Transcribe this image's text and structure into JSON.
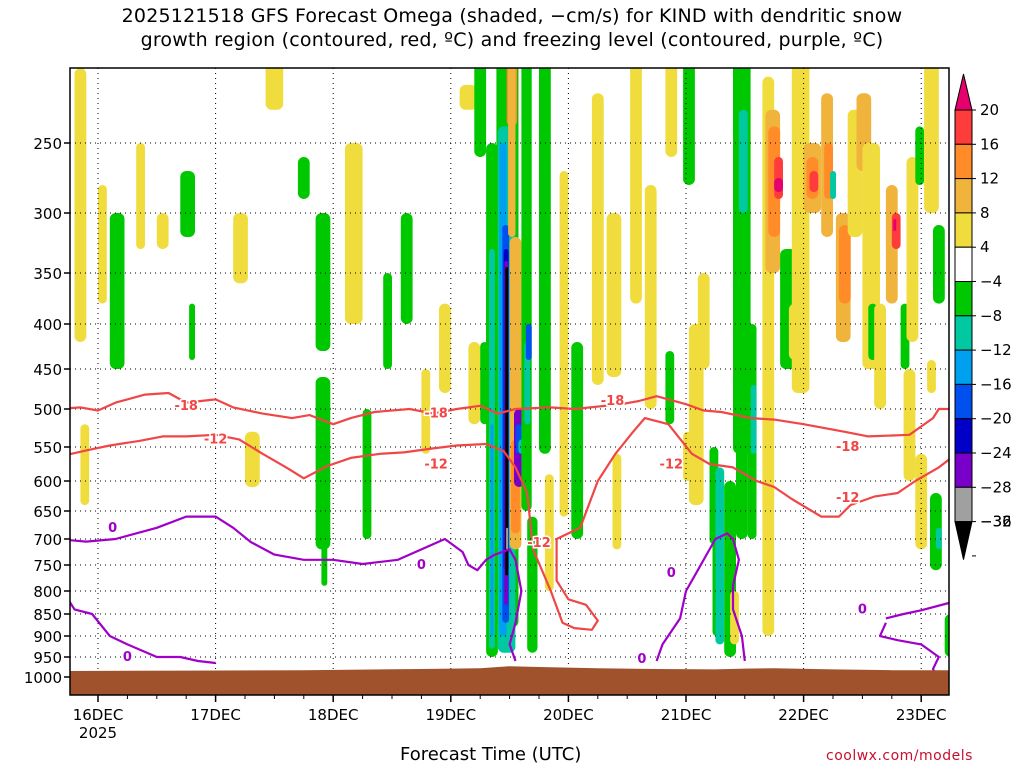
{
  "title_line1": "2025121518 GFS Forecast Omega (shaded, −cm/s) for KIND with dendritic snow",
  "title_line2": "growth region (contoured, red, ºC) and freezing level (contoured, purple, ºC)",
  "xlabel": "Forecast Time (UTC)",
  "footer": "coolwx.com/models",
  "chart_data": {
    "type": "heatmap",
    "y_axis": {
      "scale": "log",
      "direction": "decreasing-up",
      "ylim": [
        1000,
        200
      ],
      "ticks": [
        250,
        300,
        350,
        400,
        450,
        500,
        550,
        600,
        650,
        700,
        750,
        800,
        850,
        900,
        950,
        1000
      ]
    },
    "x_axis": {
      "xlim": [
        "2025-12-15 18Z",
        "2025-12-23 06Z"
      ],
      "ticks": [
        "16DEC",
        "17DEC",
        "18DEC",
        "19DEC",
        "20DEC",
        "21DEC",
        "22DEC",
        "23DEC"
      ],
      "first_tick_year": "2025"
    },
    "grid": true,
    "colorbar": {
      "levels": [
        "20",
        "16",
        "12",
        "8",
        "4",
        "−4",
        "−8",
        "−12",
        "−16",
        "−20",
        "−24",
        "−28",
        "−32",
        "−36"
      ],
      "colors": [
        "#e6006e",
        "#ff3c3c",
        "#ff8c28",
        "#f0b43c",
        "#f0dc3c",
        "#ffffff",
        "#00c800",
        "#00c8a0",
        "#00a0f0",
        "#0050f0",
        "#0000c8",
        "#7800c8",
        "#a0a0a0",
        "#000000"
      ]
    },
    "contour_colors": {
      "dendritic": "#f04646",
      "freezing": "#a000c8",
      "terrain": "#a0522d"
    },
    "contour_labels": [
      {
        "text": "-18",
        "x": "16DEC 18Z",
        "p": 496
      },
      {
        "text": "-12",
        "x": "17DEC 00Z",
        "p": 540
      },
      {
        "text": "-18",
        "x": "18DEC 21Z",
        "p": 506
      },
      {
        "text": "-12",
        "x": "18DEC 21Z",
        "p": 576
      },
      {
        "text": "-12",
        "x": "19DEC 18Z",
        "p": 708
      },
      {
        "text": "-18",
        "x": "20DEC 09Z",
        "p": 490
      },
      {
        "text": "-12",
        "x": "20DEC 21Z",
        "p": 576
      },
      {
        "text": "-18",
        "x": "22DEC 09Z",
        "p": 550
      },
      {
        "text": "-12",
        "x": "22DEC 09Z",
        "p": 628
      },
      {
        "text": "0",
        "x": "16DEC 03Z",
        "p": 680
      },
      {
        "text": "0",
        "x": "16DEC 06Z",
        "p": 950
      },
      {
        "text": "0",
        "x": "18DEC 18Z",
        "p": 750
      },
      {
        "text": "0",
        "x": "20DEC 15Z",
        "p": 955
      },
      {
        "text": "0",
        "x": "20DEC 21Z",
        "p": 765
      },
      {
        "text": "0",
        "x": "22DEC 12Z",
        "p": 840
      }
    ]
  }
}
